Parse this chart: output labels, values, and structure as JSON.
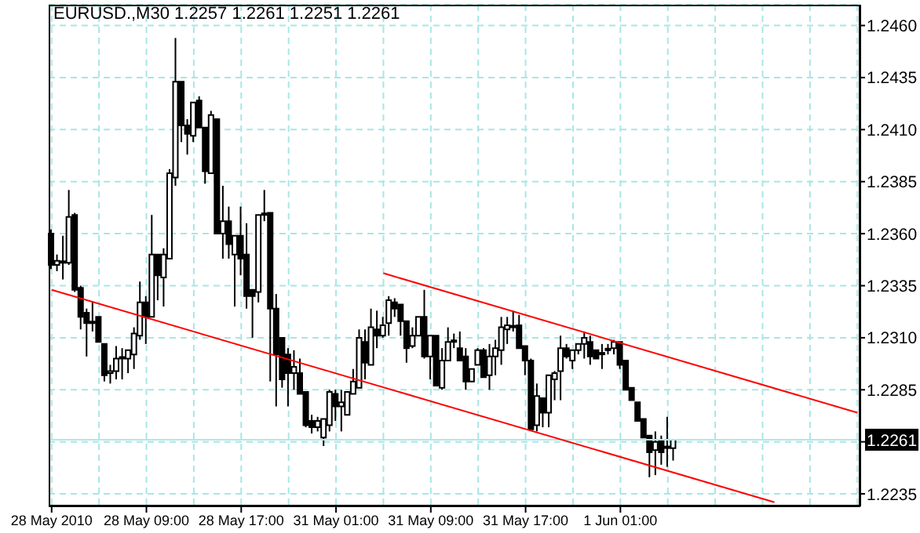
{
  "chart_data": {
    "type": "candlestick",
    "title": "EURUSD.,M30 1.2257 1.2261 1.2251 1.2261",
    "categories": [
      "28 May 2010",
      null,
      null,
      null,
      null,
      null,
      null,
      null,
      null,
      null,
      null,
      null,
      null,
      null,
      null,
      null,
      "28 May 09:00",
      null,
      null,
      null,
      null,
      null,
      null,
      null,
      null,
      null,
      null,
      null,
      null,
      null,
      null,
      null,
      "28 May 17:00",
      null,
      null,
      null,
      null,
      null,
      null,
      null,
      null,
      null,
      null,
      null,
      null,
      null,
      null,
      null,
      "31 May 01:00",
      null,
      null,
      null,
      null,
      null,
      null,
      null,
      null,
      null,
      null,
      null,
      null,
      null,
      null,
      null,
      "31 May 09:00",
      null,
      null,
      null,
      null,
      null,
      null,
      null,
      null,
      null,
      null,
      null,
      null,
      null,
      null,
      null,
      "31 May 17:00",
      null,
      null,
      null,
      null,
      null,
      null,
      null,
      null,
      null,
      null,
      null,
      null,
      null,
      null,
      null,
      "1 Jun 01:00",
      null,
      null,
      null,
      null,
      null,
      null,
      null,
      null,
      null,
      null,
      null,
      null,
      null,
      null,
      null,
      null,
      null,
      null,
      null,
      null,
      null,
      null,
      null,
      null,
      null,
      null,
      null,
      null,
      null,
      null,
      null,
      null,
      null,
      null,
      null,
      null,
      null,
      null,
      null,
      null
    ],
    "ohlc": [
      [
        1.236,
        1.2362,
        1.2343,
        1.2345
      ],
      [
        1.2345,
        1.235,
        1.2342,
        1.2347
      ],
      [
        1.2346,
        1.2359,
        1.2338,
        1.2346
      ],
      [
        1.2346,
        1.2381,
        1.2345,
        1.2368
      ],
      [
        1.2369,
        1.237,
        1.2332,
        1.2333
      ],
      [
        1.2334,
        1.2335,
        1.2314,
        1.232
      ],
      [
        1.2322,
        1.2324,
        1.2301,
        1.2317
      ],
      [
        1.2317,
        1.2327,
        1.2313,
        1.2317
      ],
      [
        1.232,
        1.232,
        1.2308,
        1.2308
      ],
      [
        1.2307,
        1.2307,
        1.2289,
        1.2292
      ],
      [
        1.2293,
        1.2297,
        1.2288,
        1.2294
      ],
      [
        1.2294,
        1.2306,
        1.229,
        1.23
      ],
      [
        1.23,
        1.2305,
        1.229,
        1.23
      ],
      [
        1.23,
        1.2304,
        1.2293,
        1.2304
      ],
      [
        1.2302,
        1.2315,
        1.2295,
        1.2312
      ],
      [
        1.2311,
        1.2337,
        1.2309,
        1.2327
      ],
      [
        1.2327,
        1.233,
        1.2307,
        1.232
      ],
      [
        1.232,
        1.2369,
        1.232,
        1.235
      ],
      [
        1.235,
        1.235,
        1.2328,
        1.234
      ],
      [
        1.2339,
        1.2353,
        1.2325,
        1.235
      ],
      [
        1.2348,
        1.2391,
        1.2348,
        1.2389
      ],
      [
        1.2387,
        1.2454,
        1.2383,
        1.2433
      ],
      [
        1.2433,
        1.2433,
        1.2404,
        1.2412
      ],
      [
        1.2412,
        1.2415,
        1.2398,
        1.2408
      ],
      [
        1.2407,
        1.2423,
        1.2404,
        1.2423
      ],
      [
        1.2424,
        1.2426,
        1.2411,
        1.2411
      ],
      [
        1.2411,
        1.2411,
        1.2384,
        1.239
      ],
      [
        1.2389,
        1.2419,
        1.2389,
        1.2417
      ],
      [
        1.2415,
        1.2415,
        1.236,
        1.236
      ],
      [
        1.236,
        1.2383,
        1.2348,
        1.2366
      ],
      [
        1.2366,
        1.2373,
        1.2348,
        1.2355
      ],
      [
        1.235,
        1.2359,
        1.2325,
        1.2359
      ],
      [
        1.2359,
        1.2373,
        1.234,
        1.2348
      ],
      [
        1.235,
        1.2365,
        1.2324,
        1.233
      ],
      [
        1.2333,
        1.2333,
        1.231,
        1.233
      ],
      [
        1.2332,
        1.2369,
        1.2327,
        1.2369
      ],
      [
        1.2369,
        1.2381,
        1.2366,
        1.2369
      ],
      [
        1.237,
        1.237,
        1.2289,
        1.2324
      ],
      [
        1.2324,
        1.2331,
        1.2277,
        1.2302
      ],
      [
        1.231,
        1.231,
        1.2286,
        1.229
      ],
      [
        1.2302,
        1.2305,
        1.2277,
        1.2293
      ],
      [
        1.2293,
        1.2304,
        1.2285,
        1.2296
      ],
      [
        1.2293,
        1.23,
        1.2283,
        1.2283
      ],
      [
        1.2284,
        1.2284,
        1.2267,
        1.2268
      ],
      [
        1.227,
        1.2273,
        1.2264,
        1.2267
      ],
      [
        1.2267,
        1.2272,
        1.2265,
        1.227
      ],
      [
        1.2262,
        1.2271,
        1.2258,
        1.2271
      ],
      [
        1.2268,
        1.2285,
        1.2265,
        1.2284
      ],
      [
        1.2283,
        1.2285,
        1.227,
        1.2277
      ],
      [
        1.2277,
        1.2285,
        1.2265,
        1.2279
      ],
      [
        1.2273,
        1.2284,
        1.2273,
        1.2284
      ],
      [
        1.2283,
        1.2295,
        1.2283,
        1.2289
      ],
      [
        1.2286,
        1.2314,
        1.2286,
        1.231
      ],
      [
        1.2308,
        1.2314,
        1.229,
        1.2298
      ],
      [
        1.2297,
        1.2324,
        1.2297,
        1.2315
      ],
      [
        1.2314,
        1.2323,
        1.2305,
        1.2311
      ],
      [
        1.2311,
        1.232,
        1.231,
        1.2316
      ],
      [
        1.2317,
        1.233,
        1.2311,
        1.2328
      ],
      [
        1.2327,
        1.2329,
        1.232,
        1.2324
      ],
      [
        1.2326,
        1.2326,
        1.2311,
        1.2318
      ],
      [
        1.2318,
        1.2318,
        1.2298,
        1.2305
      ],
      [
        1.2306,
        1.2315,
        1.2305,
        1.2311
      ],
      [
        1.2311,
        1.232,
        1.2311,
        1.232
      ],
      [
        1.232,
        1.2333,
        1.23,
        1.2301
      ],
      [
        1.2301,
        1.2311,
        1.229,
        1.2311
      ],
      [
        1.2311,
        1.2311,
        1.2287,
        1.2287
      ],
      [
        1.2286,
        1.2305,
        1.2285,
        1.2299
      ],
      [
        1.2299,
        1.2315,
        1.2299,
        1.2308
      ],
      [
        1.2308,
        1.2312,
        1.2305,
        1.2308
      ],
      [
        1.2305,
        1.2313,
        1.2299,
        1.2299
      ],
      [
        1.2301,
        1.2305,
        1.2285,
        1.2289
      ],
      [
        1.2289,
        1.2295,
        1.2289,
        1.2295
      ],
      [
        1.2297,
        1.2305,
        1.2297,
        1.2304
      ],
      [
        1.2304,
        1.2305,
        1.2291,
        1.2291
      ],
      [
        1.2292,
        1.2307,
        1.2285,
        1.2301
      ],
      [
        1.2301,
        1.2309,
        1.2292,
        1.2305
      ],
      [
        1.2304,
        1.232,
        1.2297,
        1.2315
      ],
      [
        1.2314,
        1.232,
        1.2307,
        1.2316
      ],
      [
        1.2315,
        1.2323,
        1.2313,
        1.2315
      ],
      [
        1.2316,
        1.2321,
        1.2305,
        1.2305
      ],
      [
        1.2306,
        1.2306,
        1.2292,
        1.2299
      ],
      [
        1.2299,
        1.23,
        1.2266,
        1.2266
      ],
      [
        1.2268,
        1.2288,
        1.2265,
        1.2282
      ],
      [
        1.2281,
        1.2281,
        1.2267,
        1.2274
      ],
      [
        1.2274,
        1.2292,
        1.2267,
        1.2292
      ],
      [
        1.229,
        1.2294,
        1.228,
        1.2293
      ],
      [
        1.2294,
        1.2311,
        1.228,
        1.2305
      ],
      [
        1.2305,
        1.2307,
        1.23,
        1.2301
      ],
      [
        1.2299,
        1.2304,
        1.2295,
        1.2304
      ],
      [
        1.2304,
        1.2307,
        1.2302,
        1.2307
      ],
      [
        1.2307,
        1.2313,
        1.23,
        1.231
      ],
      [
        1.2308,
        1.2311,
        1.2297,
        1.2301
      ],
      [
        1.2304,
        1.2304,
        1.23,
        1.23
      ],
      [
        1.2302,
        1.2307,
        1.2295,
        1.2302
      ],
      [
        1.2304,
        1.2307,
        1.2302,
        1.2304
      ],
      [
        1.2305,
        1.2309,
        1.2302,
        1.2308
      ],
      [
        1.2308,
        1.2308,
        1.2295,
        1.2297
      ],
      [
        1.2299,
        1.2299,
        1.2285,
        1.2285
      ],
      [
        1.2286,
        1.2286,
        1.228,
        1.228
      ],
      [
        1.2279,
        1.2279,
        1.227,
        1.227
      ],
      [
        1.2271,
        1.2271,
        1.2262,
        1.2262
      ],
      [
        1.2263,
        1.2263,
        1.2243,
        1.2255
      ],
      [
        1.2256,
        1.2265,
        1.2244,
        1.226
      ],
      [
        1.2261,
        1.2263,
        1.2249,
        1.2255
      ],
      [
        1.2257,
        1.2272,
        1.2248,
        1.2257
      ],
      [
        1.2257,
        1.2261,
        1.2251,
        1.2261
      ],
      null,
      null,
      null,
      null,
      null,
      null,
      null,
      null,
      null,
      null,
      null,
      null,
      null,
      null,
      null,
      null,
      null,
      null,
      null,
      null,
      null,
      null,
      null,
      null,
      null,
      null,
      null,
      null,
      null,
      null,
      null
    ],
    "ylim": [
      1.2229,
      1.247
    ],
    "yticks": [
      {
        "value": 1.2235,
        "label": "1.2235"
      },
      {
        "value": 1.226,
        "label": null
      },
      {
        "value": 1.2285,
        "label": "1.2285"
      },
      {
        "value": 1.231,
        "label": "1.2310"
      },
      {
        "value": 1.2335,
        "label": "1.2335"
      },
      {
        "value": 1.236,
        "label": "1.2360"
      },
      {
        "value": 1.2385,
        "label": "1.2385"
      },
      {
        "value": 1.241,
        "label": "1.2410"
      },
      {
        "value": 1.2435,
        "label": "1.2435"
      },
      {
        "value": 1.246,
        "label": "1.2460"
      }
    ],
    "grid": true,
    "marker": "none",
    "series": [
      {
        "type": "line",
        "color": "#ff0000",
        "values": [
          1.2333,
          null,
          null,
          null,
          null,
          null,
          null,
          null,
          null,
          null,
          null,
          null,
          null,
          null,
          null,
          null,
          null,
          null,
          null,
          null,
          null,
          null,
          null,
          null,
          null,
          null,
          null,
          null,
          null,
          null,
          null,
          null,
          null,
          null,
          null,
          null,
          null,
          null,
          null,
          null,
          null,
          null,
          null,
          null,
          null,
          null,
          null,
          null,
          null,
          null,
          null,
          null,
          null,
          null,
          null,
          null,
          null,
          null,
          null,
          null,
          null,
          null,
          null,
          null,
          null,
          null,
          null,
          null,
          null,
          null,
          null,
          null,
          null,
          null,
          null,
          null,
          null,
          null,
          null,
          null,
          null,
          null,
          null,
          null,
          null,
          null,
          null,
          null,
          null,
          null,
          null,
          null,
          null,
          null,
          null,
          null,
          null,
          null,
          null,
          null,
          null,
          null,
          null,
          null,
          null,
          null,
          null,
          null,
          null,
          null,
          null,
          null,
          null,
          null,
          null,
          null,
          null,
          null,
          null,
          null,
          null,
          null,
          1.2231,
          null,
          null,
          null,
          null,
          null,
          null,
          null,
          null,
          null,
          null,
          null,
          null,
          null,
          null
        ]
      },
      {
        "type": "line",
        "color": "#ff0000",
        "values": [
          null,
          null,
          null,
          null,
          null,
          null,
          null,
          null,
          null,
          null,
          null,
          null,
          null,
          null,
          null,
          null,
          null,
          null,
          null,
          null,
          null,
          null,
          null,
          null,
          null,
          null,
          null,
          null,
          null,
          null,
          null,
          null,
          null,
          null,
          null,
          null,
          null,
          null,
          null,
          null,
          null,
          null,
          null,
          null,
          null,
          null,
          null,
          null,
          null,
          null,
          null,
          null,
          null,
          null,
          null,
          null,
          1.2341,
          null,
          null,
          null,
          null,
          null,
          null,
          null,
          null,
          null,
          null,
          null,
          null,
          null,
          null,
          null,
          null,
          null,
          null,
          null,
          null,
          null,
          null,
          null,
          null,
          null,
          null,
          null,
          null,
          null,
          null,
          null,
          null,
          null,
          null,
          null,
          null,
          null,
          null,
          null,
          null,
          null,
          null,
          null,
          null,
          null,
          null,
          null,
          null,
          null,
          null,
          null,
          null,
          null,
          null,
          null,
          null,
          null,
          null,
          null,
          null,
          null,
          null,
          null,
          null,
          null,
          null,
          null,
          null,
          null,
          null,
          null,
          null,
          null,
          null,
          null,
          null,
          null,
          null,
          null,
          1.2274
        ]
      }
    ],
    "ref_lines": [
      {
        "axis": "y",
        "value": 1.2261,
        "label": "1.2261",
        "color": "#b0e8e8"
      }
    ]
  }
}
